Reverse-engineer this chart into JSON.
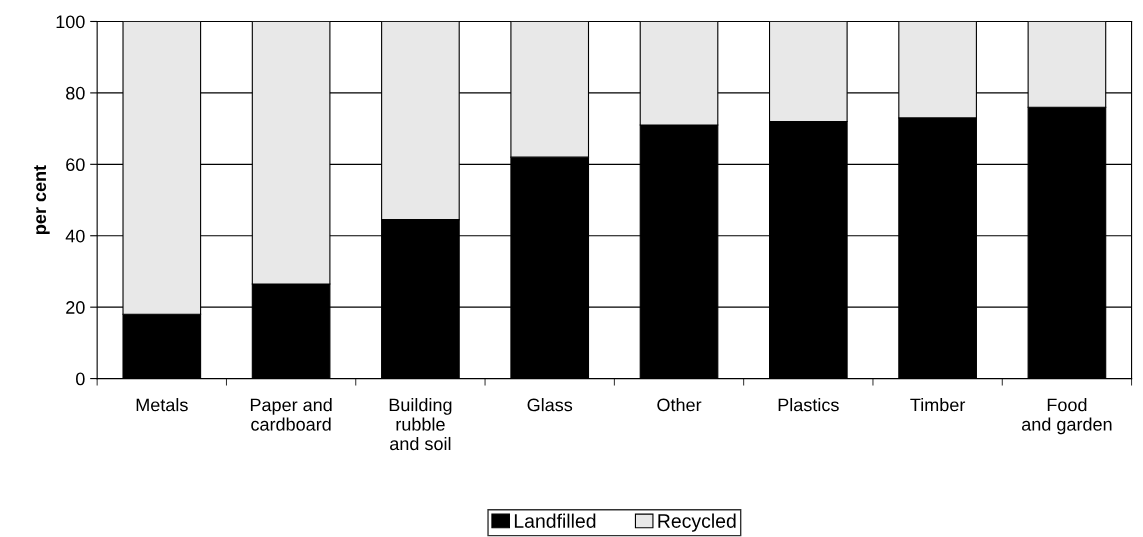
{
  "chart_data": {
    "type": "bar",
    "stacked": true,
    "ylabel": "per cent",
    "categories": [
      "Metals",
      "Paper and\ncardboard",
      "Building\nrubble\nand soil",
      "Glass",
      "Other",
      "Plastics",
      "Timber",
      "Food\nand garden"
    ],
    "series": [
      {
        "name": "Landfilled",
        "color": "#000000",
        "values": [
          18,
          26.5,
          44.5,
          62,
          71,
          72,
          73,
          76
        ]
      },
      {
        "name": "Recycled",
        "color": "#e8e8e8",
        "values": [
          82,
          73.5,
          55.5,
          38,
          29,
          28,
          27,
          24
        ]
      }
    ],
    "ylim": [
      0,
      100
    ],
    "yticks": [
      0,
      20,
      40,
      60,
      80,
      100
    ],
    "grid": "y",
    "legend": "bottom"
  }
}
